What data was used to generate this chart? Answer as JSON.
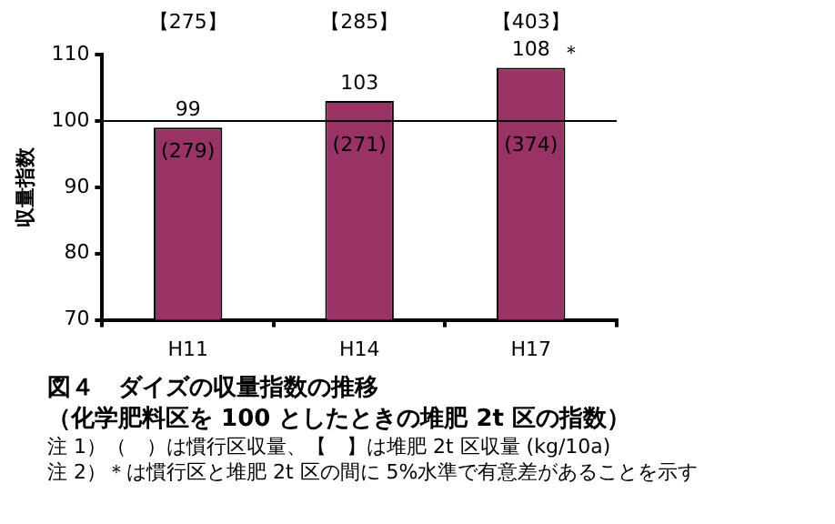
{
  "chart_data": {
    "type": "bar",
    "title": "図４　ダイズの収量指数の推移",
    "subtitle": "（化学肥料区を 100 としたときの堆肥 2t 区の指数）",
    "ylabel": "収量指数",
    "categories": [
      "H11",
      "H14",
      "H17"
    ],
    "values": [
      99,
      103,
      108
    ],
    "color": "#993366",
    "data_labels": true,
    "ylim": [
      70,
      110
    ],
    "yticks": [
      70,
      80,
      90,
      100,
      110
    ],
    "grid": false,
    "legend": false,
    "ref_lines": [
      {
        "axis": "y",
        "value": 100
      }
    ],
    "annotations": [
      "【275】",
      "【285】",
      "【403】",
      "(279)",
      "(271)",
      "(374)",
      {
        "text": "＊",
        "x": "H17",
        "y": 108
      },
      "注 1）（　）は慣行区収量、【　】は堆肥 2t 区収量 (kg/10a)",
      "注 2）＊は慣行区と堆肥 2t 区の間に 5%水準で有意差があることを示す"
    ]
  }
}
